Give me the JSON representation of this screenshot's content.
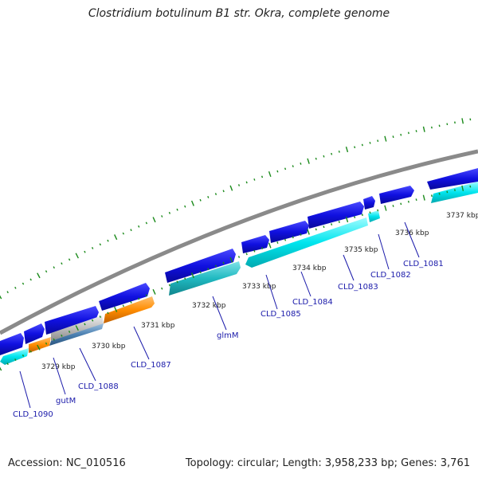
{
  "title": "Clostridium botulinum B1 str. Okra, complete genome",
  "footer": {
    "accession": "Accession: NC_010516",
    "summary": "Topology: circular; Length: 3,958,233 bp; Genes: 3,761"
  },
  "map": {
    "kbp_labels": [
      "3729 kbp",
      "3730 kbp",
      "3731 kbp",
      "3732 kbp",
      "3733 kbp",
      "3734 kbp",
      "3735 kbp",
      "3736 kbp",
      "3737 kbp"
    ],
    "gene_labels": [
      "CLD_1090",
      "gutM",
      "CLD_1088",
      "CLD_1087",
      "glmM",
      "CLD_1085",
      "CLD_1084",
      "CLD_1083",
      "CLD_1082",
      "CLD_1081"
    ],
    "colors": {
      "backbone": "#8a8a8a",
      "forward_cds": "#1010e0",
      "reverse_cds": "#00e5ee",
      "reverse_cds_dark": "#1fb8c0",
      "orange_feature": "#ff8c00",
      "gray_feature": "#c0c0c0",
      "steel_feature": "#4a7fb0",
      "tick": "#1a8a1a",
      "label": "#1a1aaa"
    }
  }
}
